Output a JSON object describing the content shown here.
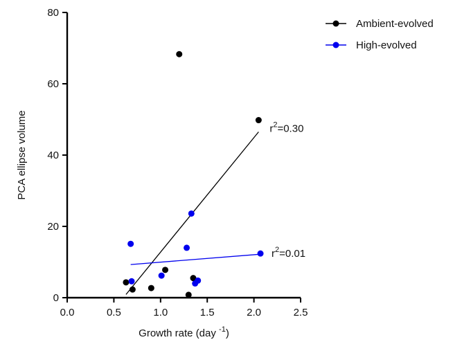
{
  "chart_data": {
    "type": "scatter",
    "title": "",
    "xlabel": "Growth rate (day",
    "xlabel_sup": "-1",
    "xlabel_suffix": ")",
    "ylabel": "PCA ellipse volume",
    "xlim": [
      0.0,
      2.5
    ],
    "ylim": [
      0,
      80
    ],
    "x_ticks": [
      "0.0",
      "0.5",
      "1.0",
      "1.5",
      "2.0",
      "2.5"
    ],
    "y_ticks": [
      "0",
      "20",
      "40",
      "60",
      "80"
    ],
    "grid": false,
    "legend_placement": "top-right",
    "series": [
      {
        "name": "Ambient-evolved",
        "color": "#000000",
        "points": [
          {
            "x": 0.63,
            "y": 4.3
          },
          {
            "x": 0.7,
            "y": 2.3
          },
          {
            "x": 0.9,
            "y": 2.7
          },
          {
            "x": 1.05,
            "y": 7.8
          },
          {
            "x": 1.2,
            "y": 68.3
          },
          {
            "x": 1.3,
            "y": 0.8
          },
          {
            "x": 1.35,
            "y": 5.5
          },
          {
            "x": 2.05,
            "y": 49.8
          }
        ],
        "fit": {
          "x": [
            0.63,
            2.05
          ],
          "y": [
            0.9,
            46.5
          ]
        },
        "annotation": {
          "base": "r",
          "sup": "2",
          "rest": "=0.30"
        }
      },
      {
        "name": "High-evolved",
        "color": "#0000ee",
        "points": [
          {
            "x": 0.68,
            "y": 15.1
          },
          {
            "x": 0.69,
            "y": 4.6
          },
          {
            "x": 1.01,
            "y": 6.2
          },
          {
            "x": 1.28,
            "y": 14.0
          },
          {
            "x": 1.33,
            "y": 23.6
          },
          {
            "x": 1.37,
            "y": 4.0
          },
          {
            "x": 1.4,
            "y": 4.8
          },
          {
            "x": 2.07,
            "y": 12.4
          }
        ],
        "fit": {
          "x": [
            0.68,
            2.07
          ],
          "y": [
            9.3,
            12.2
          ]
        },
        "annotation": {
          "base": "r",
          "sup": "2",
          "rest": "=0.01"
        }
      }
    ]
  }
}
